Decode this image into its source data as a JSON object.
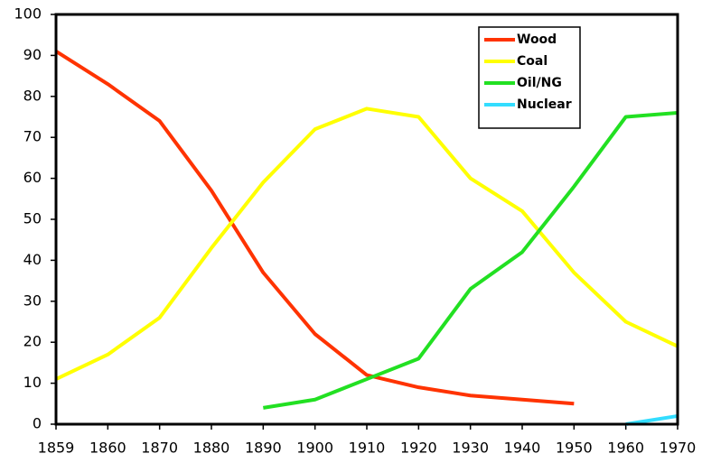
{
  "chart_data": {
    "type": "line",
    "categories": [
      "1859",
      "1860",
      "1870",
      "1880",
      "1890",
      "1900",
      "1910",
      "1920",
      "1930",
      "1940",
      "1950",
      "1960",
      "1970"
    ],
    "series": [
      {
        "name": "Wood",
        "color": "#ff3300",
        "values": [
          91,
          83,
          74,
          57,
          37,
          22,
          12,
          9,
          7,
          6,
          5,
          null,
          null
        ]
      },
      {
        "name": "Coal",
        "color": "#ffff00",
        "values": [
          11,
          17,
          26,
          43,
          59,
          72,
          77,
          75,
          60,
          52,
          37,
          25,
          19
        ]
      },
      {
        "name": "Oil/NG",
        "color": "#22e022",
        "values": [
          null,
          null,
          null,
          null,
          4,
          6,
          11,
          16,
          33,
          42,
          58,
          75,
          76
        ]
      },
      {
        "name": "Nuclear",
        "color": "#33ddff",
        "values": [
          null,
          null,
          null,
          null,
          null,
          null,
          null,
          null,
          null,
          null,
          null,
          0,
          2
        ]
      }
    ],
    "ylim": [
      0,
      100
    ],
    "yticks": [
      0,
      10,
      20,
      30,
      40,
      50,
      60,
      70,
      80,
      90,
      100
    ],
    "grid": false,
    "legend": "upper right"
  }
}
